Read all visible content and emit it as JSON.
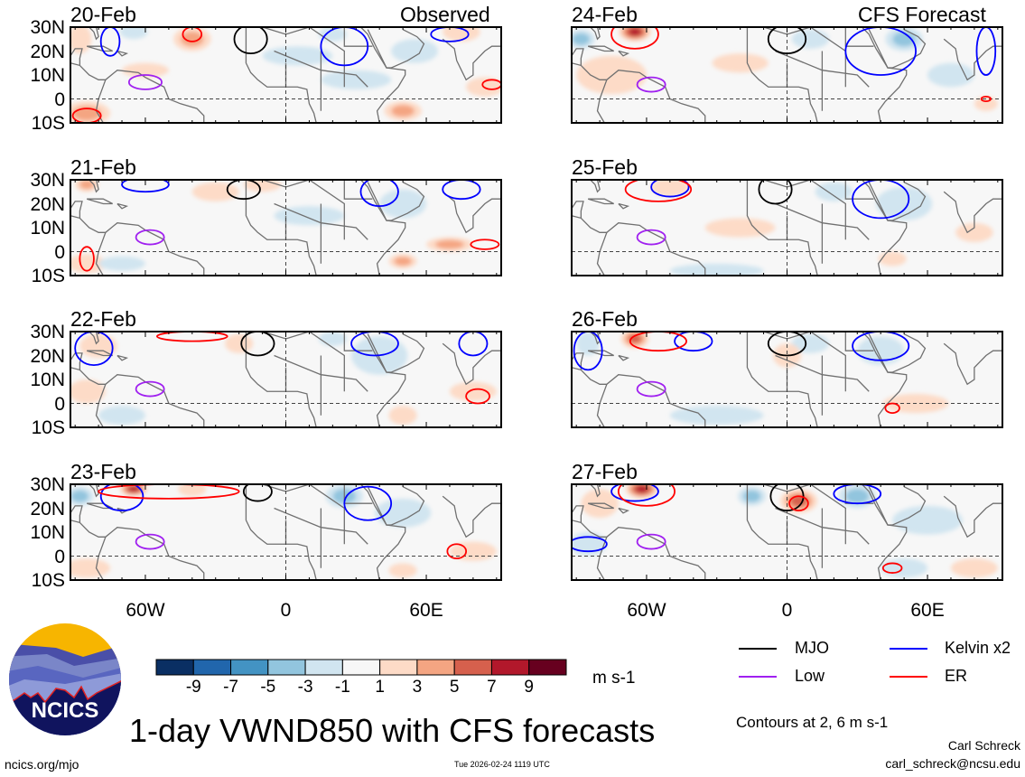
{
  "header": {
    "observed_label": "Observed",
    "forecast_label": "CFS Forecast"
  },
  "lat_labels": [
    "30N",
    "20N",
    "10N",
    "0",
    "10S"
  ],
  "lon_labels": [
    "60W",
    "0",
    "60E"
  ],
  "colorbar": {
    "levels": [
      "-9",
      "-7",
      "-5",
      "-3",
      "-1",
      "1",
      "3",
      "5",
      "7",
      "9"
    ],
    "colors": [
      "#0a2f63",
      "#2166ac",
      "#4393c3",
      "#92c5de",
      "#d1e5f0",
      "#f7f7f7",
      "#fddbc7",
      "#f4a582",
      "#d6604d",
      "#b2182b",
      "#67001f"
    ],
    "units": "m s-1"
  },
  "legend": {
    "mjo": {
      "label": "MJO",
      "color": "#000000"
    },
    "kelvin": {
      "label": "Kelvin x2",
      "color": "#0000ff"
    },
    "low": {
      "label": "Low",
      "color": "#a020f0"
    },
    "er": {
      "label": "ER",
      "color": "#ff0000"
    },
    "contours_note": "Contours at 2, 6 m s-1"
  },
  "footer": {
    "title": "1-day VWND850 with CFS forecasts",
    "url": "ncics.org/mjo",
    "timestamp": "Tue 2026-02-24 1119 UTC",
    "author": "Carl Schreck",
    "email": "carl_schreck@ncsu.edu",
    "logo_text": "NCICS"
  },
  "chart_data": {
    "type": "heatmap",
    "variable": "850-hPa meridional wind anomaly",
    "units": "m s-1",
    "lon_range": [
      -92,
      92
    ],
    "lat_range": [
      -10,
      30
    ],
    "panels": [
      {
        "date": "20-Feb",
        "kind": "observed",
        "anomalies": [
          [
            -88,
            25,
            5,
            6,
            3
          ],
          [
            -40,
            25,
            8,
            5,
            5
          ],
          [
            -85,
            -6,
            10,
            5,
            5
          ],
          [
            50,
            -5,
            8,
            4,
            5
          ],
          [
            85,
            5,
            8,
            4,
            3
          ],
          [
            -60,
            12,
            10,
            3,
            2
          ],
          [
            -65,
            28,
            6,
            3,
            -3
          ],
          [
            20,
            27,
            6,
            3,
            -3
          ],
          [
            55,
            20,
            10,
            5,
            -3
          ],
          [
            5,
            18,
            15,
            4,
            -2
          ],
          [
            30,
            8,
            15,
            4,
            -2
          ],
          [
            75,
            28,
            8,
            4,
            2
          ]
        ],
        "contours": [
          [
            "mjo",
            -15,
            25,
            7,
            6
          ],
          [
            "low",
            -60,
            7,
            7,
            3
          ],
          [
            "kelvin",
            -75,
            24,
            4,
            6
          ],
          [
            "kelvin",
            25,
            22,
            10,
            8
          ],
          [
            "kelvin",
            70,
            27,
            8,
            3
          ],
          [
            "er",
            -40,
            27,
            4,
            3
          ],
          [
            "er",
            88,
            6,
            4,
            2
          ],
          [
            "er",
            -85,
            -7,
            6,
            3
          ]
        ]
      },
      {
        "date": "21-Feb",
        "kind": "observed",
        "anomalies": [
          [
            -85,
            28,
            5,
            3,
            5
          ],
          [
            -30,
            25,
            10,
            4,
            3
          ],
          [
            70,
            3,
            10,
            3,
            5
          ],
          [
            50,
            -4,
            6,
            3,
            5
          ],
          [
            -85,
            -5,
            8,
            4,
            2
          ],
          [
            10,
            15,
            15,
            4,
            -2
          ],
          [
            50,
            20,
            10,
            6,
            -3
          ],
          [
            -10,
            28,
            8,
            3,
            3
          ],
          [
            -70,
            -5,
            10,
            3,
            -2
          ]
        ],
        "contours": [
          [
            "mjo",
            -18,
            26,
            7,
            4
          ],
          [
            "low",
            -58,
            6,
            6,
            3
          ],
          [
            "kelvin",
            -60,
            28,
            10,
            3
          ],
          [
            "kelvin",
            40,
            25,
            8,
            6
          ],
          [
            "kelvin",
            75,
            26,
            8,
            4
          ],
          [
            "er",
            85,
            3,
            6,
            2
          ],
          [
            "er",
            -85,
            -3,
            3,
            5
          ]
        ]
      },
      {
        "date": "22-Feb",
        "kind": "observed",
        "anomalies": [
          [
            -80,
            24,
            8,
            5,
            3
          ],
          [
            -20,
            25,
            6,
            4,
            3
          ],
          [
            20,
            27,
            6,
            3,
            -3
          ],
          [
            40,
            20,
            12,
            8,
            -3
          ],
          [
            80,
            5,
            10,
            4,
            3
          ],
          [
            50,
            -5,
            6,
            4,
            3
          ],
          [
            -70,
            -5,
            10,
            4,
            -2
          ],
          [
            -85,
            5,
            8,
            5,
            2
          ]
        ],
        "contours": [
          [
            "mjo",
            -12,
            25,
            7,
            5
          ],
          [
            "low",
            -58,
            6,
            6,
            3
          ],
          [
            "kelvin",
            -82,
            23,
            8,
            7
          ],
          [
            "kelvin",
            38,
            25,
            10,
            5
          ],
          [
            "kelvin",
            80,
            25,
            6,
            5
          ],
          [
            "er",
            -40,
            28,
            15,
            2
          ],
          [
            "er",
            82,
            3,
            5,
            3
          ]
        ]
      },
      {
        "date": "23-Feb",
        "kind": "observed",
        "anomalies": [
          [
            -65,
            28,
            6,
            3,
            9
          ],
          [
            -88,
            25,
            6,
            4,
            -5
          ],
          [
            -40,
            28,
            6,
            3,
            3
          ],
          [
            25,
            25,
            8,
            5,
            -5
          ],
          [
            50,
            18,
            12,
            6,
            -3
          ],
          [
            -85,
            -5,
            10,
            4,
            3
          ],
          [
            80,
            2,
            10,
            4,
            2
          ],
          [
            50,
            -6,
            6,
            3,
            3
          ]
        ],
        "contours": [
          [
            "mjo",
            -12,
            27,
            6,
            4
          ],
          [
            "low",
            -58,
            6,
            6,
            3
          ],
          [
            "kelvin",
            -70,
            25,
            9,
            6
          ],
          [
            "kelvin",
            35,
            22,
            10,
            7
          ],
          [
            "er",
            -50,
            27,
            30,
            3
          ],
          [
            "er",
            73,
            2,
            4,
            3
          ]
        ]
      },
      {
        "date": "24-Feb",
        "kind": "forecast",
        "anomalies": [
          [
            -65,
            28,
            7,
            4,
            9
          ],
          [
            -88,
            25,
            6,
            4,
            -5
          ],
          [
            -75,
            10,
            15,
            8,
            3
          ],
          [
            10,
            25,
            8,
            4,
            -3
          ],
          [
            50,
            25,
            8,
            5,
            -5
          ],
          [
            -20,
            15,
            12,
            4,
            2
          ],
          [
            70,
            10,
            10,
            5,
            -2
          ],
          [
            85,
            -2,
            5,
            3,
            3
          ]
        ],
        "contours": [
          [
            "mjo",
            0,
            25,
            8,
            6
          ],
          [
            "low",
            -58,
            6,
            6,
            3
          ],
          [
            "kelvin",
            40,
            20,
            15,
            10
          ],
          [
            "kelvin",
            85,
            20,
            4,
            10
          ],
          [
            "er",
            -65,
            27,
            10,
            6
          ],
          [
            "er",
            85,
            0,
            2,
            1
          ]
        ]
      },
      {
        "date": "25-Feb",
        "kind": "forecast",
        "anomalies": [
          [
            -50,
            27,
            8,
            4,
            3
          ],
          [
            20,
            25,
            8,
            4,
            -3
          ],
          [
            50,
            20,
            12,
            7,
            -3
          ],
          [
            45,
            -3,
            6,
            3,
            3
          ],
          [
            -20,
            10,
            15,
            4,
            2
          ],
          [
            -30,
            -8,
            20,
            3,
            -2
          ],
          [
            80,
            8,
            8,
            4,
            3
          ]
        ],
        "contours": [
          [
            "mjo",
            -5,
            26,
            7,
            6
          ],
          [
            "low",
            -58,
            6,
            6,
            3
          ],
          [
            "kelvin",
            -50,
            27,
            8,
            4
          ],
          [
            "kelvin",
            40,
            22,
            12,
            8
          ],
          [
            "er",
            -55,
            26,
            14,
            5
          ]
        ]
      },
      {
        "date": "26-Feb",
        "kind": "forecast",
        "anomalies": [
          [
            -65,
            27,
            6,
            4,
            7
          ],
          [
            -85,
            25,
            5,
            5,
            -3
          ],
          [
            10,
            25,
            8,
            4,
            -3
          ],
          [
            40,
            22,
            10,
            6,
            -3
          ],
          [
            0,
            20,
            6,
            5,
            3
          ],
          [
            55,
            0,
            14,
            4,
            3
          ],
          [
            -30,
            -5,
            20,
            4,
            -2
          ]
        ],
        "contours": [
          [
            "mjo",
            0,
            25,
            8,
            5
          ],
          [
            "low",
            -58,
            6,
            6,
            3
          ],
          [
            "kelvin",
            -85,
            22,
            6,
            8
          ],
          [
            "kelvin",
            -40,
            26,
            8,
            4
          ],
          [
            "kelvin",
            40,
            24,
            12,
            6
          ],
          [
            "er",
            -55,
            26,
            12,
            4
          ],
          [
            "er",
            45,
            -2,
            3,
            2
          ]
        ]
      },
      {
        "date": "27-Feb",
        "kind": "forecast",
        "anomalies": [
          [
            -62,
            28,
            7,
            4,
            9
          ],
          [
            -80,
            22,
            8,
            6,
            3
          ],
          [
            5,
            23,
            8,
            5,
            7
          ],
          [
            -15,
            25,
            6,
            4,
            -5
          ],
          [
            30,
            25,
            8,
            5,
            -5
          ],
          [
            60,
            15,
            15,
            6,
            -2
          ],
          [
            50,
            -5,
            10,
            4,
            -2
          ],
          [
            -85,
            5,
            8,
            5,
            -2
          ],
          [
            80,
            -5,
            10,
            4,
            2
          ]
        ],
        "contours": [
          [
            "mjo",
            0,
            25,
            7,
            6
          ],
          [
            "low",
            -58,
            6,
            6,
            3
          ],
          [
            "kelvin",
            -85,
            5,
            8,
            3
          ],
          [
            "kelvin",
            -65,
            27,
            10,
            4
          ],
          [
            "kelvin",
            30,
            26,
            10,
            4
          ],
          [
            "er",
            -60,
            27,
            12,
            6
          ],
          [
            "er",
            5,
            22,
            4,
            3
          ],
          [
            "er",
            45,
            -5,
            4,
            2
          ]
        ]
      }
    ]
  }
}
